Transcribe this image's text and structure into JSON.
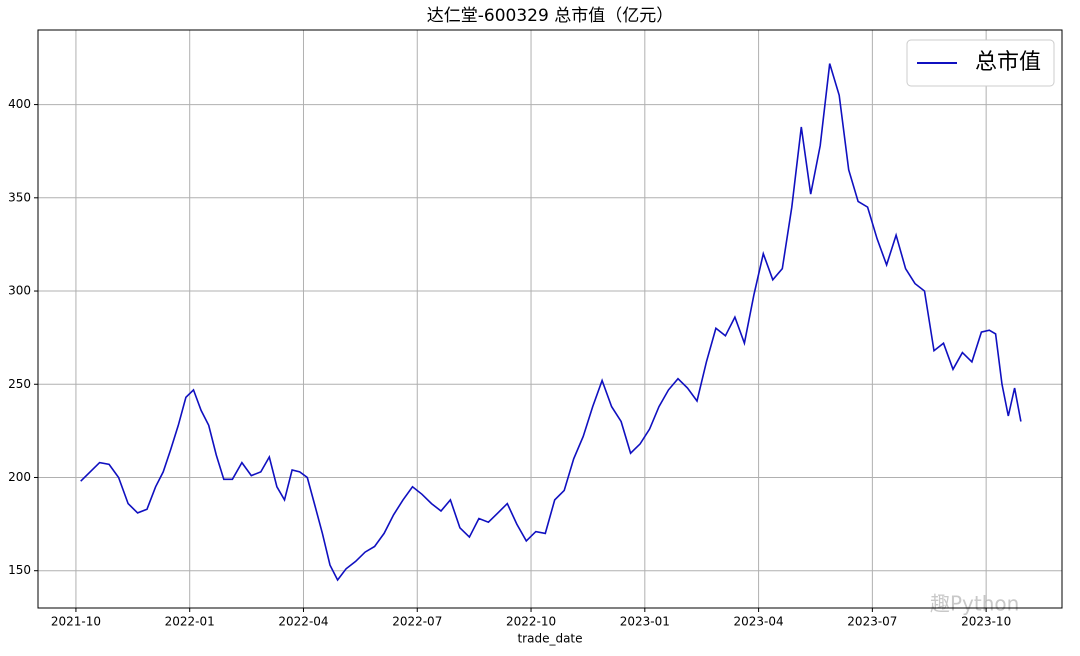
{
  "chart_data": {
    "type": "line",
    "title": "达仁堂-600329 总市值（亿元）",
    "xlabel": "trade_date",
    "watermark": "趣Python",
    "x": [
      "2021-10",
      "2021-10",
      "2021-10",
      "2021-10",
      "2021-11",
      "2021-11",
      "2021-11",
      "2021-11",
      "2021-12",
      "2021-12",
      "2021-12",
      "2021-12",
      "2021-12",
      "2022-01",
      "2022-01",
      "2022-01",
      "2022-01",
      "2022-01",
      "2022-02",
      "2022-02",
      "2022-02",
      "2022-02",
      "2022-03",
      "2022-03",
      "2022-03",
      "2022-03",
      "2022-03",
      "2022-04",
      "2022-04",
      "2022-04",
      "2022-04",
      "2022-04",
      "2022-05",
      "2022-05",
      "2022-05",
      "2022-05",
      "2022-06",
      "2022-06",
      "2022-06",
      "2022-06",
      "2022-07",
      "2022-07",
      "2022-07",
      "2022-07",
      "2022-08",
      "2022-08",
      "2022-08",
      "2022-08",
      "2022-09",
      "2022-09",
      "2022-09",
      "2022-09",
      "2022-10",
      "2022-10",
      "2022-10",
      "2022-10",
      "2022-11",
      "2022-11",
      "2022-11",
      "2022-11",
      "2022-12",
      "2022-12",
      "2022-12",
      "2022-12",
      "2023-01",
      "2023-01",
      "2023-01",
      "2023-01",
      "2023-02",
      "2023-02",
      "2023-02",
      "2023-02",
      "2023-03",
      "2023-03",
      "2023-03",
      "2023-03",
      "2023-04",
      "2023-04",
      "2023-04",
      "2023-04",
      "2023-05",
      "2023-05",
      "2023-05",
      "2023-05",
      "2023-06",
      "2023-06",
      "2023-06",
      "2023-06",
      "2023-07",
      "2023-07",
      "2023-07",
      "2023-07",
      "2023-08",
      "2023-08",
      "2023-08",
      "2023-08",
      "2023-09",
      "2023-09",
      "2023-09",
      "2023-09",
      "2023-10",
      "2023-10",
      "2023-10",
      "2023-10",
      "2023-10",
      "2023-10"
    ],
    "series": [
      {
        "name": "总市值",
        "color": "#1010c0",
        "values": [
          198,
          203,
          208,
          207,
          200,
          186,
          181,
          183,
          195,
          203,
          215,
          228,
          243,
          247,
          236,
          228,
          212,
          199,
          199,
          208,
          201,
          203,
          211,
          195,
          188,
          204,
          203,
          200,
          185,
          170,
          153,
          145,
          151,
          155,
          160,
          163,
          170,
          180,
          188,
          195,
          191,
          186,
          182,
          188,
          173,
          168,
          178,
          176,
          181,
          186,
          175,
          166,
          171,
          170,
          188,
          193,
          210,
          222,
          238,
          252,
          238,
          230,
          213,
          218,
          226,
          238,
          247,
          253,
          248,
          241,
          262,
          280,
          276,
          286,
          272,
          298,
          320,
          306,
          312,
          345,
          388,
          352,
          378,
          422,
          405,
          365,
          348,
          345,
          328,
          314,
          330,
          312,
          304,
          300,
          268,
          272,
          258,
          267,
          262,
          278,
          279,
          277,
          250,
          233,
          248,
          230
        ]
      }
    ],
    "xlim": [
      "2021-09",
      "2023-12"
    ],
    "xticks": [
      "2021-10",
      "2022-01",
      "2022-04",
      "2022-07",
      "2022-10",
      "2023-01",
      "2023-04",
      "2023-07",
      "2023-10"
    ],
    "ylim": [
      130,
      440
    ],
    "yticks": [
      150,
      200,
      250,
      300,
      350,
      400
    ],
    "grid": true,
    "legend": "upper right"
  }
}
